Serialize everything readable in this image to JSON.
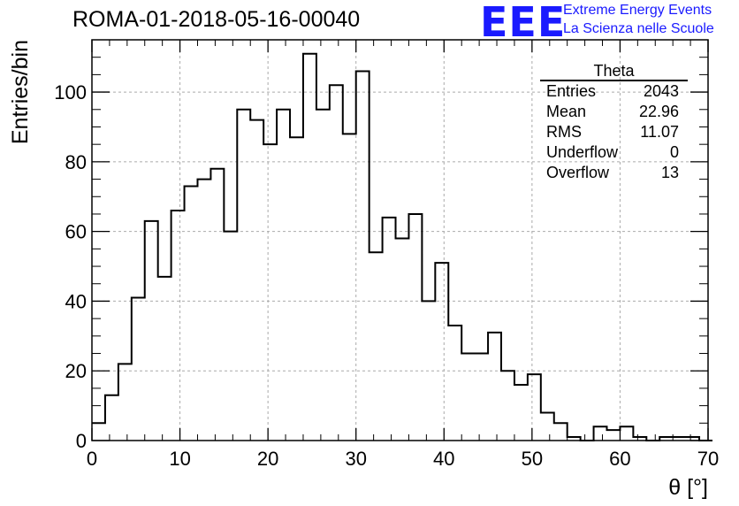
{
  "header": {
    "title": "ROMA-01-2018-05-16-00040",
    "logo_text": "EEE",
    "logo_line1": "Extreme Energy Events",
    "logo_line2": "La Scienza nelle Scuole"
  },
  "stats": {
    "title": "Theta",
    "rows": [
      {
        "label": "Entries",
        "value": "2043"
      },
      {
        "label": "Mean",
        "value": "22.96"
      },
      {
        "label": "RMS",
        "value": "11.07"
      },
      {
        "label": "Underflow",
        "value": "0"
      },
      {
        "label": "Overflow",
        "value": "13"
      }
    ]
  },
  "colors": {
    "logo": "#1a1aff",
    "line": "#000000",
    "grid": "#aaaaaa"
  },
  "chart_data": {
    "type": "bar",
    "style": "step-histogram",
    "xlabel": "θ [°]",
    "ylabel": "Entries/bin",
    "xlim": [
      0,
      70
    ],
    "ylim": [
      0,
      115
    ],
    "grid": true,
    "bin_width": 1.5,
    "xticks": [
      0,
      10,
      20,
      30,
      40,
      50,
      60,
      70
    ],
    "yticks": [
      0,
      20,
      40,
      60,
      80,
      100
    ],
    "values": [
      5,
      13,
      22,
      41,
      63,
      47,
      66,
      73,
      75,
      78,
      60,
      95,
      92,
      85,
      95,
      87,
      111,
      95,
      102,
      88,
      106,
      54,
      64,
      58,
      65,
      40,
      51,
      33,
      25,
      25,
      31,
      20,
      16,
      19,
      8,
      5,
      1,
      0,
      4,
      3,
      4,
      1,
      0,
      1,
      1,
      1,
      0
    ]
  }
}
